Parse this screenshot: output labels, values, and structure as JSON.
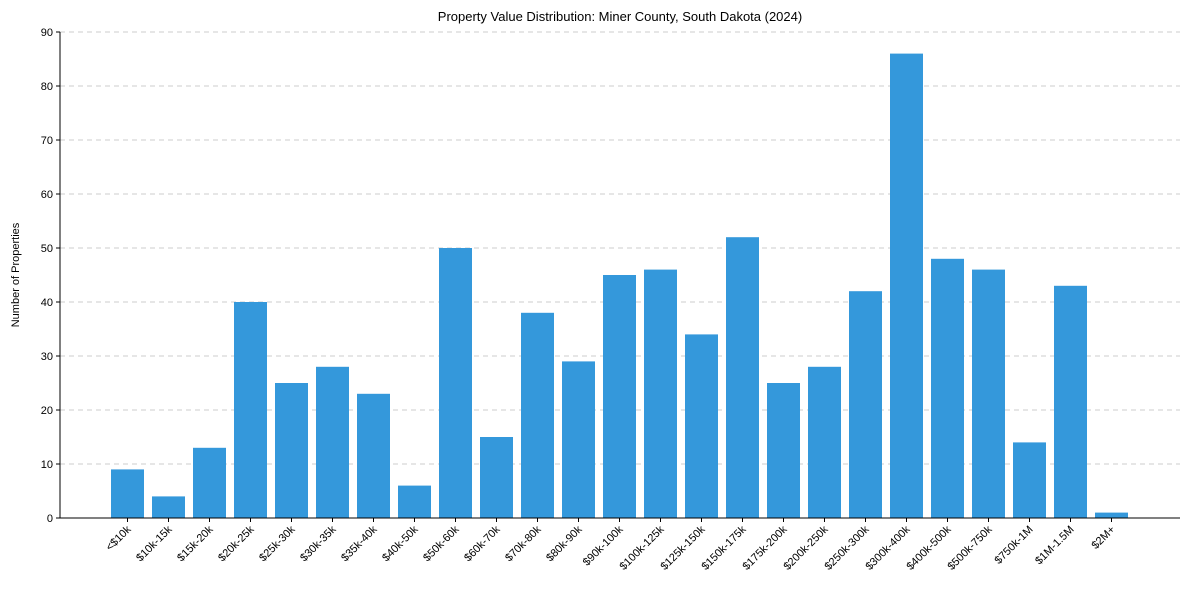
{
  "chart_data": {
    "type": "bar",
    "title": "Property Value Distribution: Miner County, South Dakota (2024)",
    "xlabel": "",
    "ylabel": "Number of Properties",
    "ylim": [
      0,
      90
    ],
    "yticks": [
      0,
      10,
      20,
      30,
      40,
      50,
      60,
      70,
      80,
      90
    ],
    "grid": "horizontal-dashed",
    "bar_color": "#3498db",
    "categories": [
      "<$10k",
      "$10k-15k",
      "$15k-20k",
      "$20k-25k",
      "$25k-30k",
      "$30k-35k",
      "$35k-40k",
      "$40k-50k",
      "$50k-60k",
      "$60k-70k",
      "$70k-80k",
      "$80k-90k",
      "$90k-100k",
      "$100k-125k",
      "$125k-150k",
      "$150k-175k",
      "$175k-200k",
      "$200k-250k",
      "$250k-300k",
      "$300k-400k",
      "$400k-500k",
      "$500k-750k",
      "$750k-1M",
      "$1M-1.5M",
      "$2M+"
    ],
    "values": [
      9,
      4,
      13,
      40,
      25,
      28,
      23,
      6,
      50,
      15,
      38,
      29,
      45,
      46,
      34,
      52,
      25,
      28,
      42,
      86,
      48,
      46,
      14,
      43,
      1
    ]
  }
}
